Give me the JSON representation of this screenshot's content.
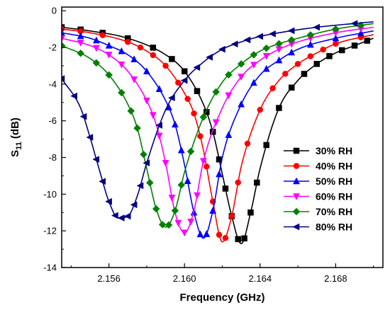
{
  "chart_data": {
    "type": "line",
    "xlabel": "Frequency (GHz)",
    "ylabel_main": "S",
    "ylabel_sub": "11",
    "ylabel_unit": " (dB)",
    "xlim": [
      2.1535,
      2.1705
    ],
    "ylim": [
      -14,
      0.2
    ],
    "x_ticks": [
      "2.156",
      "2.160",
      "2.164",
      "2.168"
    ],
    "x_tick_values": [
      2.156,
      2.16,
      2.164,
      2.168
    ],
    "y_ticks": [
      "0",
      "-2",
      "-4",
      "-6",
      "-8",
      "-10",
      "-12",
      "-14"
    ],
    "y_tick_values": [
      0,
      -2,
      -4,
      -6,
      -8,
      -10,
      -12,
      -14
    ],
    "legend_position": "bottom-right",
    "series": [
      {
        "name": "30% RH",
        "color": "#000000",
        "marker": "square",
        "x": [
          2.1535,
          2.155,
          2.157,
          2.159,
          2.16,
          2.161,
          2.1615,
          2.162,
          2.1625,
          2.163,
          2.1635,
          2.164,
          2.165,
          2.166,
          2.167,
          2.168,
          2.169,
          2.17
        ],
        "y": [
          -0.9,
          -1.1,
          -1.5,
          -2.4,
          -3.3,
          -5.1,
          -6.6,
          -8.9,
          -11.2,
          -12.7,
          -11.0,
          -8.6,
          -5.3,
          -3.8,
          -2.9,
          -2.3,
          -1.9,
          -1.5
        ]
      },
      {
        "name": "40% RH",
        "color": "#ff0000",
        "marker": "circle",
        "x": [
          2.1535,
          2.155,
          2.157,
          2.158,
          2.159,
          2.16,
          2.1605,
          2.161,
          2.1615,
          2.162,
          2.1625,
          2.163,
          2.164,
          2.165,
          2.166,
          2.167,
          2.168,
          2.17
        ],
        "y": [
          -1.0,
          -1.2,
          -1.7,
          -2.2,
          -3.0,
          -4.5,
          -5.6,
          -7.6,
          -10.4,
          -12.6,
          -11.2,
          -8.5,
          -5.4,
          -3.8,
          -2.9,
          -2.3,
          -1.8,
          -1.3
        ]
      },
      {
        "name": "50% RH",
        "color": "#0000ff",
        "marker": "triangle-up",
        "x": [
          2.1535,
          2.155,
          2.156,
          2.157,
          2.158,
          2.159,
          2.1595,
          2.16,
          2.1605,
          2.161,
          2.1615,
          2.162,
          2.163,
          2.164,
          2.165,
          2.166,
          2.168,
          2.17
        ],
        "y": [
          -1.2,
          -1.5,
          -1.9,
          -2.4,
          -3.3,
          -4.9,
          -6.2,
          -8.4,
          -11.0,
          -12.4,
          -10.9,
          -8.0,
          -5.1,
          -3.5,
          -2.7,
          -2.1,
          -1.5,
          -1.1
        ]
      },
      {
        "name": "60% RH",
        "color": "#ff00ff",
        "marker": "triangle-down",
        "x": [
          2.1535,
          2.155,
          2.156,
          2.157,
          2.158,
          2.1585,
          2.159,
          2.1595,
          2.16,
          2.1605,
          2.161,
          2.162,
          2.163,
          2.164,
          2.165,
          2.166,
          2.168,
          2.17
        ],
        "y": [
          -1.5,
          -1.9,
          -2.4,
          -3.3,
          -4.9,
          -6.2,
          -8.3,
          -11.0,
          -12.1,
          -10.9,
          -8.2,
          -5.3,
          -3.6,
          -2.7,
          -2.1,
          -1.7,
          -1.2,
          -0.9
        ]
      },
      {
        "name": "70% RH",
        "color": "#008000",
        "marker": "diamond",
        "x": [
          2.1535,
          2.155,
          2.156,
          2.157,
          2.1575,
          2.158,
          2.1585,
          2.159,
          2.1595,
          2.16,
          2.161,
          2.162,
          2.163,
          2.164,
          2.165,
          2.166,
          2.168,
          2.17
        ],
        "y": [
          -1.9,
          -2.6,
          -3.5,
          -5.1,
          -6.4,
          -8.6,
          -10.8,
          -11.8,
          -10.9,
          -8.8,
          -5.8,
          -3.9,
          -2.9,
          -2.2,
          -1.8,
          -1.5,
          -1.0,
          -0.7
        ]
      },
      {
        "name": "80% RH",
        "color": "#000080",
        "marker": "triangle-left",
        "x": [
          2.1535,
          2.1545,
          2.155,
          2.1555,
          2.156,
          2.1565,
          2.157,
          2.1575,
          2.158,
          2.159,
          2.16,
          2.161,
          2.162,
          2.163,
          2.164,
          2.165,
          2.167,
          2.17
        ],
        "y": [
          -3.7,
          -5.3,
          -6.9,
          -8.7,
          -10.4,
          -11.3,
          -11.2,
          -10.1,
          -8.3,
          -5.4,
          -3.8,
          -2.8,
          -2.1,
          -1.7,
          -1.4,
          -1.2,
          -0.9,
          -0.6
        ]
      }
    ]
  }
}
